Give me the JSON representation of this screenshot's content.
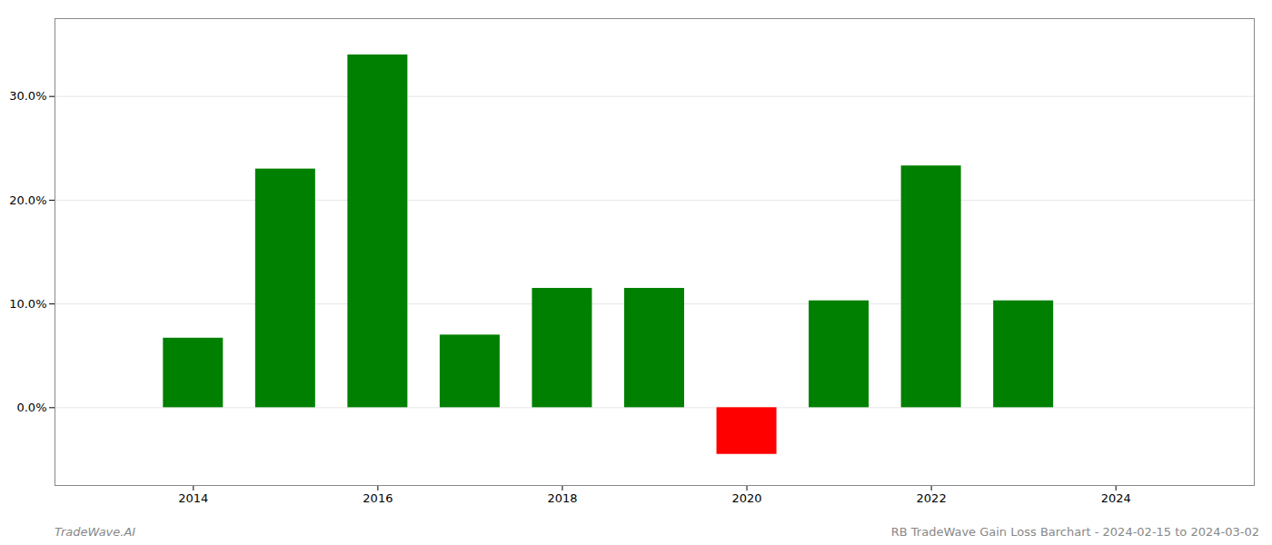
{
  "chart_data": {
    "type": "bar",
    "title": "RB TradeWave Gain Loss Barchart - 2024-02-15 to 2024-03-02",
    "annotations": [
      "TradeWave.AI"
    ],
    "x": [
      2014,
      2015,
      2016,
      2017,
      2018,
      2019,
      2020,
      2021,
      2022,
      2023
    ],
    "values": [
      0.067,
      0.23,
      0.34,
      0.07,
      0.115,
      0.115,
      -0.045,
      0.103,
      0.233,
      0.103
    ],
    "colors": [
      "#008000",
      "#008000",
      "#008000",
      "#008000",
      "#008000",
      "#008000",
      "#ff0000",
      "#008000",
      "#008000",
      "#008000"
    ],
    "xlim": [
      2012.5,
      2025.5
    ],
    "xticks": [
      2014,
      2016,
      2018,
      2020,
      2022,
      2024
    ],
    "ylim": [
      -0.075,
      0.375
    ],
    "yticks": [
      {
        "value": 0.0,
        "label": "0.0%"
      },
      {
        "value": 0.1,
        "label": "10.0%"
      },
      {
        "value": 0.2,
        "label": "20.0%"
      },
      {
        "value": 0.3,
        "label": "30.0%"
      }
    ],
    "grid": true
  }
}
